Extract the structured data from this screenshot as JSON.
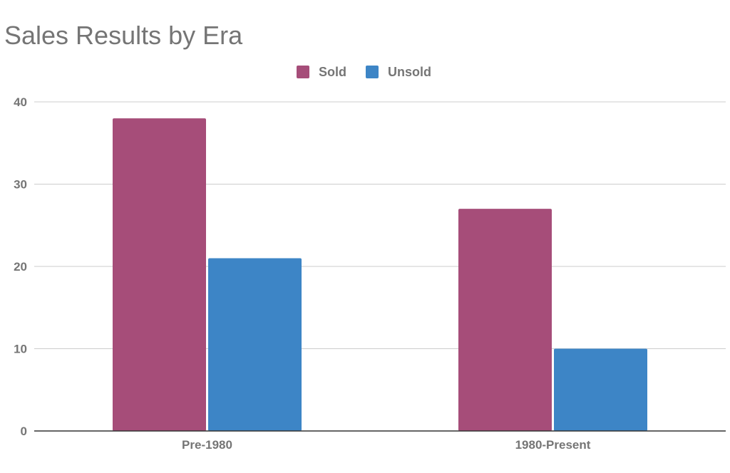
{
  "chart_data": {
    "type": "bar",
    "title": "Sales Results by Era",
    "xlabel": "",
    "ylabel": "",
    "categories": [
      "Pre-1980",
      "1980-Present"
    ],
    "series": [
      {
        "name": "Sold",
        "values": [
          38,
          27
        ],
        "color": "#a64d79"
      },
      {
        "name": "Unsold",
        "values": [
          21,
          10
        ],
        "color": "#3d85c6"
      }
    ],
    "ylim": [
      0,
      40
    ],
    "yticks": [
      "0",
      "10",
      "20",
      "30",
      "40"
    ],
    "grid": true,
    "legend_position": "top-center"
  }
}
